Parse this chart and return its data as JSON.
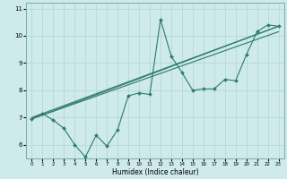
{
  "title": "",
  "xlabel": "Humidex (Indice chaleur)",
  "xlim": [
    -0.5,
    23.5
  ],
  "ylim": [
    5.5,
    11.2
  ],
  "yticks": [
    6,
    7,
    8,
    9,
    10,
    11
  ],
  "xticks": [
    0,
    1,
    2,
    3,
    4,
    5,
    6,
    7,
    8,
    9,
    10,
    11,
    12,
    13,
    14,
    15,
    16,
    17,
    18,
    19,
    20,
    21,
    22,
    23
  ],
  "bg_color": "#ceeaea",
  "line_color": "#2d7a6e",
  "grid_color": "#b8d8d8",
  "series_main": {
    "x": [
      0,
      1,
      2,
      3,
      4,
      5,
      6,
      7,
      8,
      9,
      10,
      11,
      12,
      13,
      14,
      15,
      16,
      17,
      18,
      19,
      20,
      21,
      22,
      23
    ],
    "y": [
      6.95,
      7.15,
      6.9,
      6.6,
      6.0,
      5.55,
      6.35,
      5.95,
      6.55,
      7.8,
      7.9,
      7.85,
      10.6,
      9.25,
      8.65,
      8.0,
      8.05,
      8.05,
      8.4,
      8.35,
      9.3,
      10.15,
      10.4,
      10.35
    ]
  },
  "series_lines": [
    {
      "x": [
        0,
        23
      ],
      "y": [
        6.95,
        10.35
      ]
    },
    {
      "x": [
        0,
        23
      ],
      "y": [
        7.0,
        10.35
      ]
    },
    {
      "x": [
        0,
        23
      ],
      "y": [
        6.95,
        10.15
      ]
    }
  ]
}
